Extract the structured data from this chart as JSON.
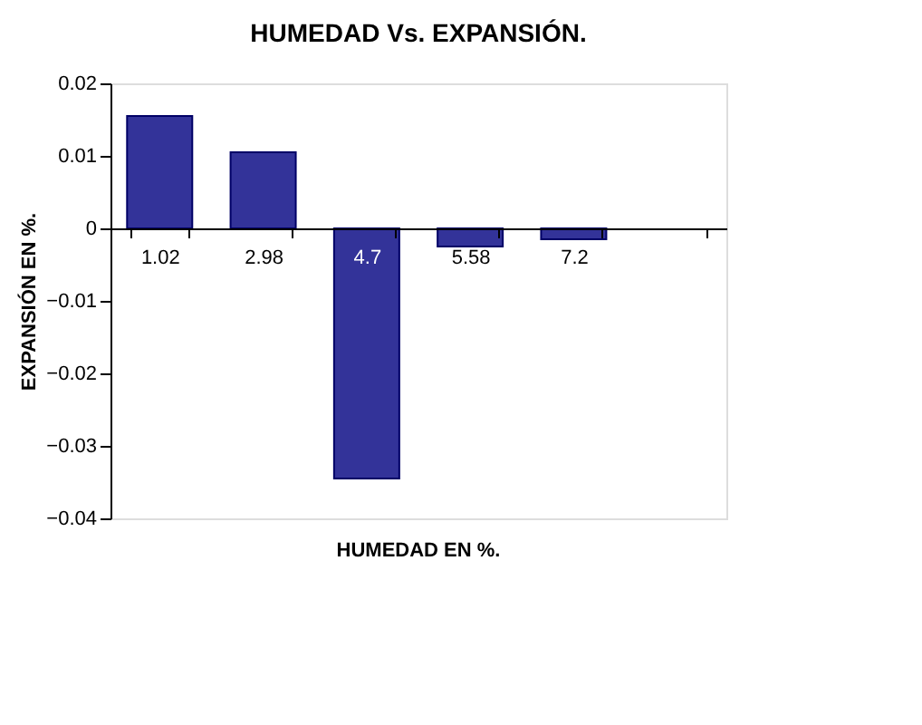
{
  "chart_data": {
    "type": "bar",
    "title": "HUMEDAD Vs. EXPANSIÓN.",
    "xlabel": "HUMEDAD EN %.",
    "ylabel": "EXPANSIÓN EN %.",
    "categories": [
      "1.02",
      "2.98",
      "4.7",
      "5.58",
      "7.2",
      null
    ],
    "series": [
      {
        "color": "#333399",
        "values": [
          0.0155,
          0.0105,
          -0.0345,
          -0.0025,
          -0.0015,
          null
        ]
      }
    ],
    "ylim": [
      -0.04,
      0.02
    ],
    "yticks": [
      -0.04,
      -0.03,
      -0.02,
      -0.01,
      0,
      0.01,
      0.02
    ],
    "grid": false,
    "legend": false
  }
}
